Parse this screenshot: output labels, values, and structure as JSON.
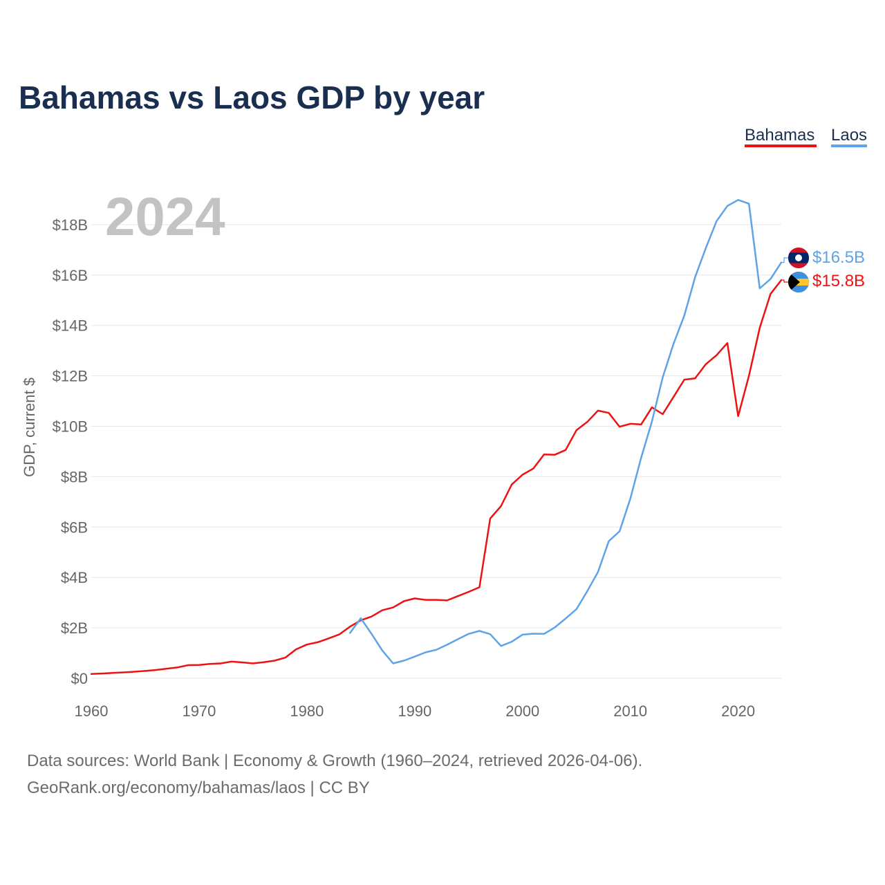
{
  "chart_data": {
    "type": "line",
    "title": "Bahamas vs Laos GDP by year",
    "xlabel": "",
    "ylabel": "GDP, current $",
    "year_label": "2024",
    "xlim": [
      1960,
      2024
    ],
    "ylim": [
      0,
      19500000000
    ],
    "x_ticks": [
      1960,
      1970,
      1980,
      1990,
      2000,
      2010,
      2020
    ],
    "x_tick_labels": [
      "1960",
      "1970",
      "1980",
      "1990",
      "2000",
      "2010",
      "2020"
    ],
    "y_ticks": [
      0,
      2000000000,
      4000000000,
      6000000000,
      8000000000,
      10000000000,
      12000000000,
      14000000000,
      16000000000,
      18000000000
    ],
    "y_tick_labels": [
      "$0",
      "$2B",
      "$4B",
      "$6B",
      "$8B",
      "$10B",
      "$12B",
      "$14B",
      "$16B",
      "$18B"
    ],
    "grid": true,
    "legend_position": "top-right",
    "series": [
      {
        "name": "Bahamas",
        "color": "#ee1111",
        "end_label": "$15.8B",
        "flag_icon": "bahamas-flag-icon",
        "x": [
          1960,
          1961,
          1962,
          1963,
          1964,
          1965,
          1966,
          1967,
          1968,
          1969,
          1970,
          1971,
          1972,
          1973,
          1974,
          1975,
          1976,
          1977,
          1978,
          1979,
          1980,
          1981,
          1982,
          1983,
          1984,
          1985,
          1986,
          1987,
          1988,
          1989,
          1990,
          1991,
          1992,
          1993,
          1994,
          1995,
          1996,
          1997,
          1998,
          1999,
          2000,
          2001,
          2002,
          2003,
          2004,
          2005,
          2006,
          2007,
          2008,
          2009,
          2010,
          2011,
          2012,
          2013,
          2014,
          2015,
          2016,
          2017,
          2018,
          2019,
          2020,
          2021,
          2022,
          2023,
          2024
        ],
        "values": [
          169000000,
          188000000,
          210000000,
          233000000,
          260000000,
          290000000,
          330000000,
          380000000,
          430000000,
          520000000,
          527000000,
          570000000,
          590000000,
          660000000,
          630000000,
          590000000,
          640000000,
          700000000,
          820000000,
          1150000000,
          1340000000,
          1430000000,
          1580000000,
          1740000000,
          2050000000,
          2300000000,
          2450000000,
          2700000000,
          2810000000,
          3060000000,
          3170000000,
          3110000000,
          3110000000,
          3090000000,
          3260000000,
          3430000000,
          3610000000,
          6340000000,
          6830000000,
          7690000000,
          8080000000,
          8320000000,
          8880000000,
          8870000000,
          9060000000,
          9840000000,
          10170000000,
          10620000000,
          10530000000,
          9980000000,
          10100000000,
          10070000000,
          10750000000,
          10480000000,
          11160000000,
          11850000000,
          11900000000,
          12460000000,
          12820000000,
          13300000000,
          10400000000,
          12000000000,
          13900000000,
          15250000000,
          15800000000
        ]
      },
      {
        "name": "Laos",
        "color": "#5da3e6",
        "end_label": "$16.5B",
        "flag_icon": "laos-flag-icon",
        "x": [
          1984,
          1985,
          1986,
          1987,
          1988,
          1989,
          1990,
          1991,
          1992,
          1993,
          1994,
          1995,
          1996,
          1997,
          1998,
          1999,
          2000,
          2001,
          2002,
          2003,
          2004,
          2005,
          2006,
          2007,
          2008,
          2009,
          2010,
          2011,
          2012,
          2013,
          2014,
          2015,
          2016,
          2017,
          2018,
          2019,
          2020,
          2021,
          2022,
          2023,
          2024
        ],
        "values": [
          1800000000,
          2380000000,
          1760000000,
          1100000000,
          590000000,
          700000000,
          860000000,
          1030000000,
          1130000000,
          1330000000,
          1550000000,
          1760000000,
          1880000000,
          1750000000,
          1280000000,
          1450000000,
          1730000000,
          1770000000,
          1760000000,
          2020000000,
          2370000000,
          2740000000,
          3450000000,
          4220000000,
          5440000000,
          5830000000,
          7130000000,
          8750000000,
          10190000000,
          11940000000,
          13270000000,
          14390000000,
          15910000000,
          17070000000,
          18140000000,
          18740000000,
          18980000000,
          18830000000,
          15470000000,
          15840000000,
          16500000000
        ]
      }
    ]
  },
  "footer": {
    "sources": "Data sources: World Bank | Economy & Growth (1960–2024, retrieved 2026-04-06).",
    "credit": "GeoRank.org/economy/bahamas/laos | CC BY"
  }
}
